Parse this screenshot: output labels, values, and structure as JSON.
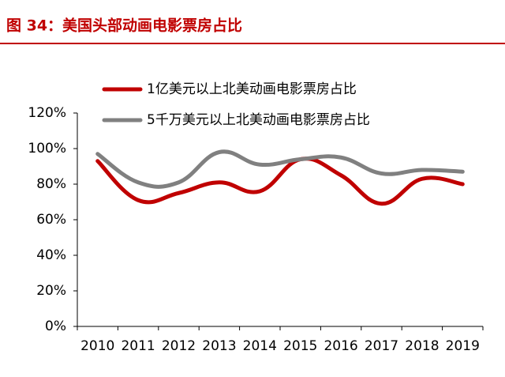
{
  "chart_data": {
    "type": "line",
    "title": "图 34：美国头部动画电影票房占比",
    "categories": [
      "2010",
      "2011",
      "2012",
      "2013",
      "2014",
      "2015",
      "2016",
      "2017",
      "2018",
      "2019"
    ],
    "series": [
      {
        "name": "1亿美元以上北美动画电影票房占比",
        "color": "#c00000",
        "values": [
          93,
          71,
          75,
          81,
          76,
          94,
          85,
          69,
          83,
          80
        ]
      },
      {
        "name": "5千万美元以上北美动画电影票房占比",
        "color": "#808080",
        "values": [
          97,
          81,
          81,
          98,
          91,
          94,
          95,
          86,
          88,
          87
        ]
      }
    ],
    "ylim": [
      0,
      120
    ],
    "yticks": [
      {
        "value": 0,
        "label": "0%"
      },
      {
        "value": 20,
        "label": "20%"
      },
      {
        "value": 40,
        "label": "40%"
      },
      {
        "value": 60,
        "label": "60%"
      },
      {
        "value": 80,
        "label": "80%"
      },
      {
        "value": 100,
        "label": "100%"
      },
      {
        "value": 120,
        "label": "120%"
      }
    ]
  }
}
